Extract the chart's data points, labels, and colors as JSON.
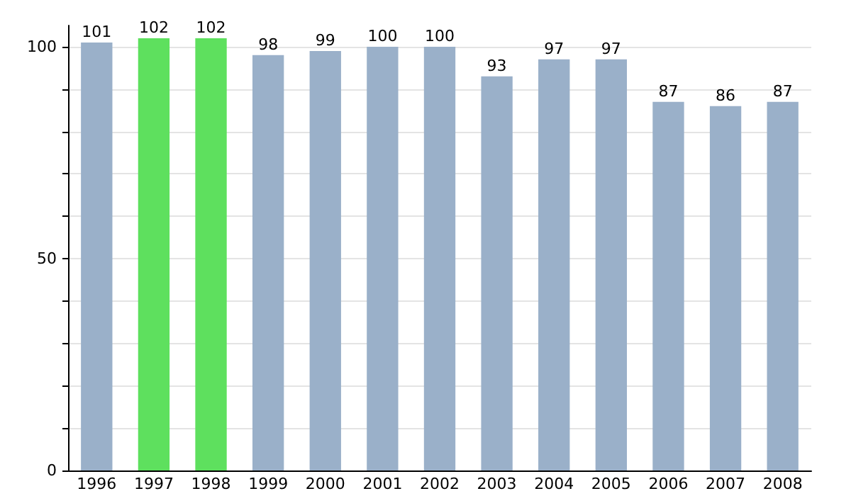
{
  "chart_data": {
    "type": "bar",
    "categories": [
      "1996",
      "1997",
      "1998",
      "1999",
      "2000",
      "2001",
      "2002",
      "2003",
      "2004",
      "2005",
      "2006",
      "2007",
      "2008"
    ],
    "values": [
      101,
      102,
      102,
      98,
      99,
      100,
      100,
      93,
      97,
      97,
      87,
      86,
      87
    ],
    "colors": [
      "#9ab0c9",
      "#5ee05e",
      "#5ee05e",
      "#9ab0c9",
      "#9ab0c9",
      "#9ab0c9",
      "#9ab0c9",
      "#9ab0c9",
      "#9ab0c9",
      "#9ab0c9",
      "#9ab0c9",
      "#9ab0c9",
      "#9ab0c9"
    ],
    "ylim": [
      0,
      105
    ],
    "yticks": [
      0,
      {
        "value": 10,
        "label": null
      },
      {
        "value": 20,
        "label": null
      },
      {
        "value": 30,
        "label": null
      },
      {
        "value": 40,
        "label": null
      },
      50,
      {
        "value": 60,
        "label": null
      },
      {
        "value": 70,
        "label": null
      },
      {
        "value": 80,
        "label": null
      },
      {
        "value": 90,
        "label": null
      },
      100
    ],
    "grid": "y",
    "data_labels": true
  }
}
